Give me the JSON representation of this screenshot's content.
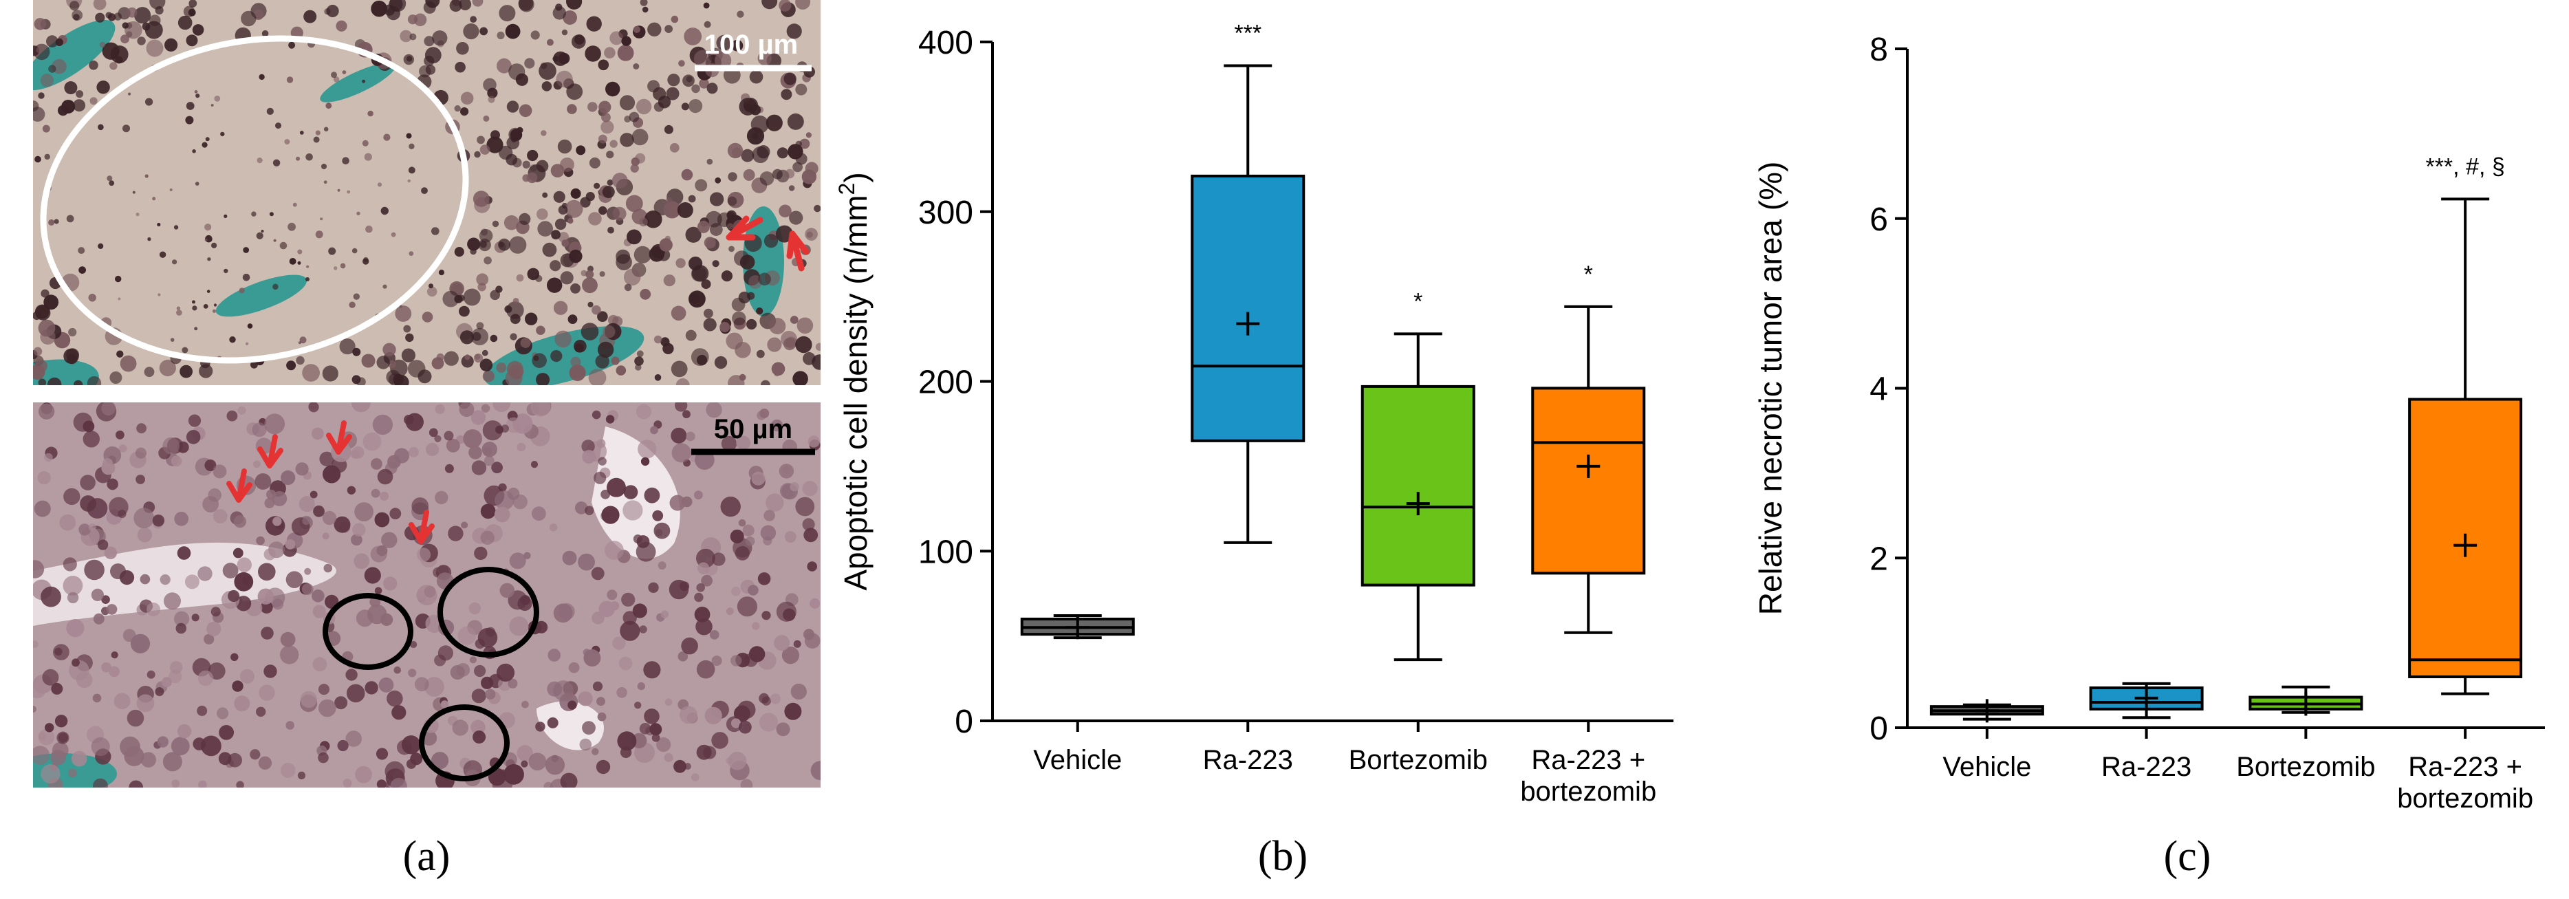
{
  "micrographs": {
    "top_scale_label": "100 µm",
    "bottom_scale_label": "50 µm",
    "tissue_color": "#cdbcb2",
    "cell_color": "#3a2226",
    "bone_color": "#3a9a94",
    "arrow_color": "#e53333"
  },
  "panel_labels": [
    "(a)",
    "(b)",
    "(c)"
  ],
  "chart_data": [
    {
      "type": "box",
      "panel": "b",
      "ylabel": "Apoptotic cell density (n/mm",
      "ylabel_sup": "2",
      "ylabel_end": ")",
      "ylim": [
        0,
        400
      ],
      "yticks": [
        0,
        100,
        200,
        300,
        400
      ],
      "categories": [
        "Vehicle",
        "Ra-223",
        "Bortezomib",
        "Ra-223 +\nbortezomib"
      ],
      "colors": [
        "#666666",
        "#1b93c7",
        "#6ac318",
        "#ff8000"
      ],
      "boxes": [
        {
          "min": 49,
          "q1": 51,
          "median": 55,
          "q3": 60,
          "max": 62,
          "mean": 55,
          "annotation": ""
        },
        {
          "min": 105,
          "q1": 165,
          "median": 209,
          "q3": 321,
          "max": 386,
          "mean": 234,
          "annotation": "***"
        },
        {
          "min": 36,
          "q1": 80,
          "median": 126,
          "q3": 197,
          "max": 228,
          "mean": 128,
          "annotation": "*"
        },
        {
          "min": 52,
          "q1": 87,
          "median": 164,
          "q3": 196,
          "max": 244,
          "mean": 150,
          "annotation": "*"
        }
      ]
    },
    {
      "type": "box",
      "panel": "c",
      "ylabel": "Relative necrotic tumor area (%)",
      "ylabel_sup": "",
      "ylabel_end": "",
      "ylim": [
        0,
        8
      ],
      "yticks": [
        0,
        2,
        4,
        6,
        8
      ],
      "categories": [
        "Vehicle",
        "Ra-223",
        "Bortezomib",
        "Ra-223 +\nbortezomib"
      ],
      "colors": [
        "#666666",
        "#1b93c7",
        "#6ac318",
        "#ff8000"
      ],
      "boxes": [
        {
          "min": 0.1,
          "q1": 0.16,
          "median": 0.2,
          "q3": 0.25,
          "max": 0.27,
          "mean": 0.2,
          "annotation": ""
        },
        {
          "min": 0.12,
          "q1": 0.22,
          "median": 0.3,
          "q3": 0.47,
          "max": 0.52,
          "mean": 0.35,
          "annotation": ""
        },
        {
          "min": 0.18,
          "q1": 0.22,
          "median": 0.28,
          "q3": 0.36,
          "max": 0.48,
          "mean": 0.28,
          "annotation": ""
        },
        {
          "min": 0.4,
          "q1": 0.6,
          "median": 0.8,
          "q3": 3.87,
          "max": 6.23,
          "mean": 2.15,
          "annotation": "***, #, §"
        }
      ]
    }
  ]
}
